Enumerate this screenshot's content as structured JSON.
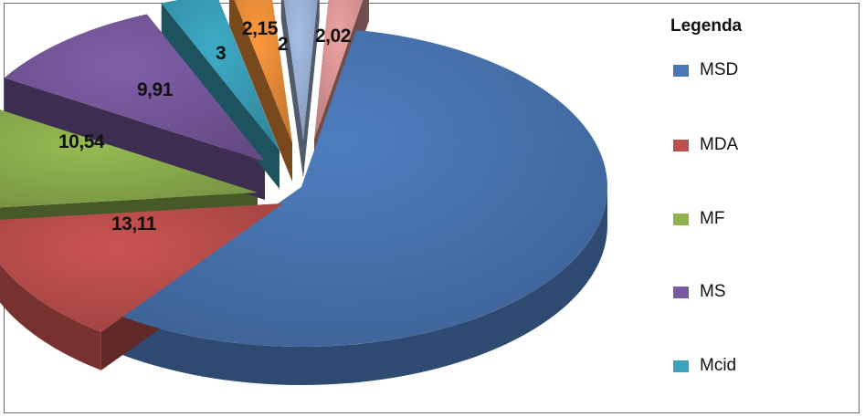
{
  "chart_data": {
    "type": "pie",
    "title": "",
    "legend_title": "Legenda",
    "legend_position": "right",
    "slices": [
      {
        "label": "MSD",
        "value": 57.27,
        "display": "",
        "color": "#4a78b6"
      },
      {
        "label": "MDA",
        "value": 13.11,
        "display": "13,11",
        "color": "#c0504d"
      },
      {
        "label": "MF",
        "value": 10.54,
        "display": "10,54",
        "color": "#8fb24f"
      },
      {
        "label": "MS",
        "value": 9.91,
        "display": "9,91",
        "color": "#7a5aa0"
      },
      {
        "label": "Mcid",
        "value": 3,
        "display": "3",
        "color": "#3aa3bd"
      },
      {
        "label": "",
        "value": 2.15,
        "display": "2,15",
        "color": "#f0913a"
      },
      {
        "label": "",
        "value": 2,
        "display": "2",
        "color": "#9fb6dc"
      },
      {
        "label": "",
        "value": 2.02,
        "display": "2,02",
        "color": "#e29a9a"
      }
    ],
    "legend": [
      "MSD",
      "MDA",
      "MF",
      "MS",
      "Mcid"
    ]
  }
}
